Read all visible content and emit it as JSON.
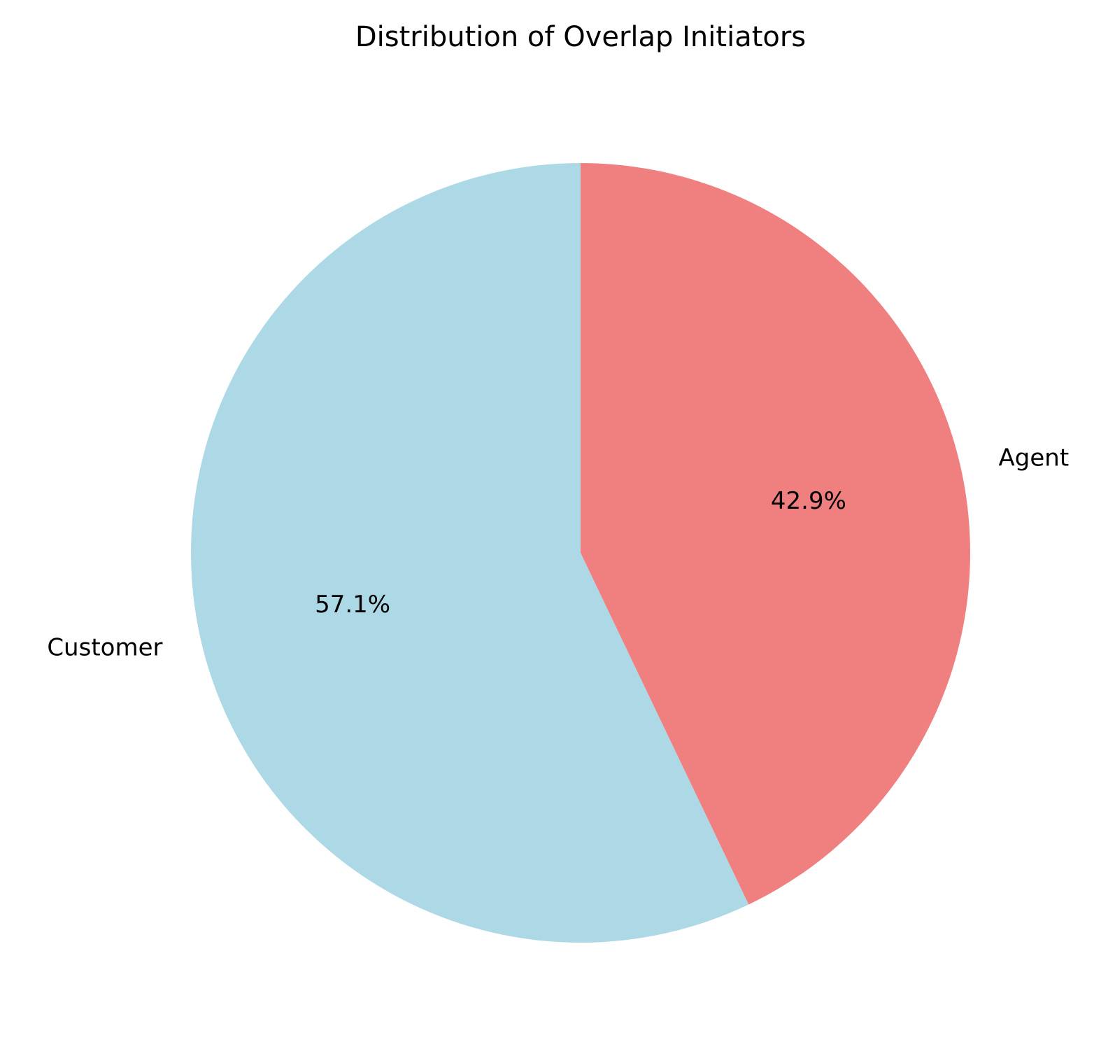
{
  "chart_data": {
    "type": "pie",
    "title": "Distribution of Overlap Initiators",
    "start_angle_deg": 90,
    "direction": "counterclockwise",
    "slices": [
      {
        "label": "Customer",
        "value": 57.1,
        "pct_label": "57.1%",
        "color": "#ADD8E6"
      },
      {
        "label": "Agent",
        "value": 42.9,
        "pct_label": "42.9%",
        "color": "#F08080"
      }
    ]
  }
}
